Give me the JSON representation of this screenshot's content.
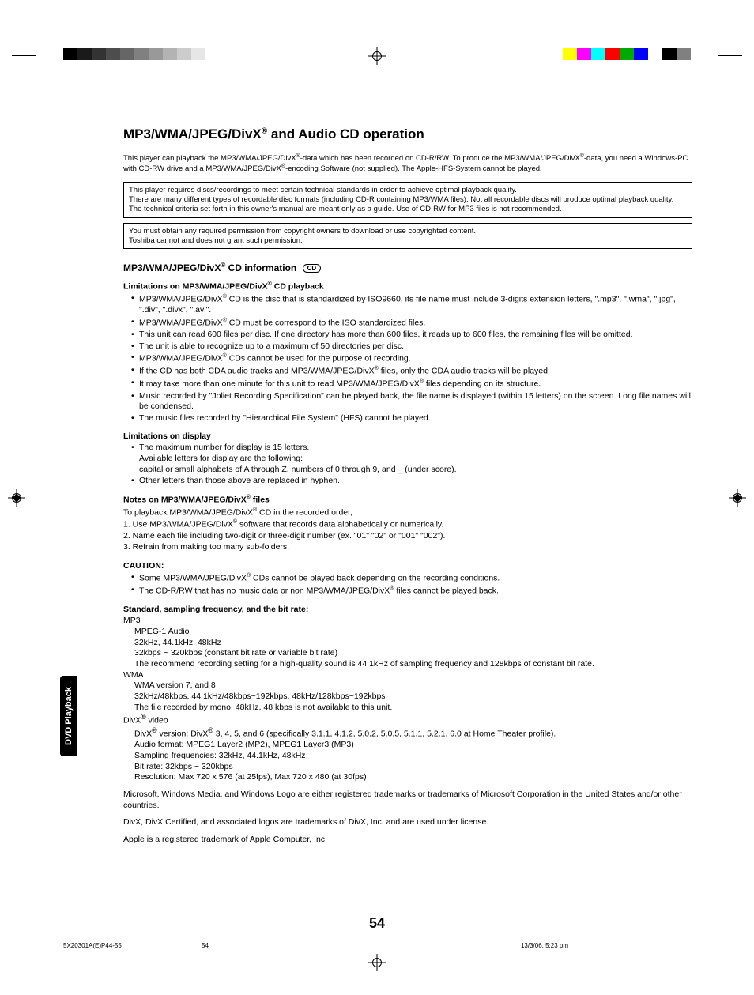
{
  "pageTitle": "MP3/WMA/JPEG/DivX® and Audio CD operation",
  "intro": "This player can playback the MP3/WMA/JPEG/DivX®-data which has been recorded on CD-R/RW. To produce the MP3/WMA/JPEG/DivX®-data, you need a Windows-PC with CD-RW drive and a MP3/WMA/JPEG/DivX®-encoding Software (not supplied). The Apple-HFS-System cannot be played.",
  "box1": "This player requires discs/recordings to meet certain technical standards in order to achieve optimal playback quality.\nThere are many different types of recordable disc formats (including CD-R containing MP3/WMA files). Not all recordable discs will produce optimal playback quality. The technical criteria set forth in this owner's manual are meant only as a guide. Use of CD-RW for MP3 files is not recommended.",
  "box2": "You must obtain any required permission from copyright owners to download or use copyrighted content.\nToshiba cannot and does not grant such permission.",
  "sectionHeading": "MP3/WMA/JPEG/DivX® CD information",
  "discIcon": "CD",
  "sub1": "Limitations on MP3/WMA/JPEG/DivX® CD playback",
  "bullets1": [
    "MP3/WMA/JPEG/DivX® CD is the disc that is standardized by ISO9660, its file name must include 3-digits extension letters, \".mp3\", \".wma\", \".jpg\", \".div\", \".divx\", \".avi\".",
    "MP3/WMA/JPEG/DivX® CD must be correspond to the ISO standardized files.",
    "This unit can read 600 files per disc. If one directory has more than 600 files, it reads up to 600 files, the remaining files will be omitted.",
    "The unit is able to recognize up to a maximum of 50 directories per disc.",
    "MP3/WMA/JPEG/DivX® CDs cannot be used for the purpose of recording.",
    "If the CD has both CDA audio tracks and MP3/WMA/JPEG/DivX® files, only the CDA audio tracks will be played.",
    "It may take more than one minute for this unit to read MP3/WMA/JPEG/DivX® files depending on its structure.",
    "Music recorded by \"Joliet Recording Specification\" can be played back, the file name is displayed (within 15 letters) on the screen. Long file names will be condensed.",
    "The music files recorded by \"Hierarchical File System\" (HFS) cannot be played."
  ],
  "sub2": "Limitations on display",
  "bullets2": [
    "The maximum number for display is 15 letters.\nAvailable letters for display are the following:\ncapital or small alphabets of A through Z, numbers of 0 through 9, and _ (under score).",
    "Other letters than those above are replaced in hyphen."
  ],
  "sub3": "Notes on MP3/WMA/JPEG/DivX® files",
  "noteIntro": "To playback MP3/WMA/JPEG/DivX® CD in the recorded order,",
  "numlist": [
    "1. Use MP3/WMA/JPEG/DivX® software that records data alphabetically or numerically.",
    "2. Name each file including two-digit or three-digit number (ex. \"01\" \"02\" or \"001\" \"002\").",
    "3. Refrain from making too many sub-folders."
  ],
  "sub4": "CAUTION:",
  "bullets4": [
    "Some MP3/WMA/JPEG/DivX® CDs cannot be played back depending on the recording conditions.",
    "The CD-R/RW that has no music data or non MP3/WMA/JPEG/DivX® files cannot be played back."
  ],
  "sub5": "Standard, sampling frequency, and the bit rate:",
  "specMP3label": "MP3",
  "specMP3": [
    "MPEG-1 Audio",
    "32kHz, 44.1kHz, 48kHz",
    "32kbps ~ 320kbps (constant bit rate or variable bit rate)",
    "The recommend recording setting for a high-quality sound is 44.1kHz of sampling frequency and 128kbps of constant bit rate."
  ],
  "specWMAlabel": "WMA",
  "specWMA": [
    "WMA version 7, and 8",
    "32kHz/48kbps, 44.1kHz/48kbps~192kbps, 48kHz/128kbps~192kbps",
    "The file recorded by mono, 48kHz, 48 kbps is not available to this unit."
  ],
  "specDivXlabel": "DivX® video",
  "specDivX": [
    "DivX® version: DivX® 3, 4, 5, and 6 (specifically 3.1.1, 4.1.2, 5.0.2, 5.0.5, 5.1.1, 5.2.1, 6.0 at Home Theater profile).",
    "Audio format: MPEG1 Layer2 (MP2), MPEG1 Layer3 (MP3)",
    "Sampling frequencies: 32kHz, 44.1kHz, 48kHz",
    "Bit rate: 32kbps ~ 320kbps",
    "Resolution: Max 720 x 576 (at 25fps), Max 720 x 480 (at 30fps)"
  ],
  "trademark1": "Microsoft, Windows Media, and Windows Logo are either registered trademarks or trademarks of Microsoft Corporation in the United States and/or other countries.",
  "trademark2": "DivX, DivX Certified, and associated logos are trademarks of DivX, Inc. and are used under license.",
  "trademark3": "Apple is a registered trademark of Apple Computer, Inc.",
  "pageNumber": "54",
  "sideTab": "DVD Playback",
  "footerLeft": "5X20301A(E)P44-55",
  "footerMid": "54",
  "footerRight": "13/3/06, 5:23 pm",
  "grayBar": [
    "#000000",
    "#1a1a1a",
    "#333333",
    "#4d4d4d",
    "#666666",
    "#808080",
    "#999999",
    "#b3b3b3",
    "#cccccc",
    "#e6e6e6",
    "#ffffff"
  ],
  "cmykBar": [
    "#ffff00",
    "#ff00ff",
    "#00ffff",
    "#ff0000",
    "#00aa00",
    "#0000ff",
    "#ffffff",
    "#000000",
    "#808080"
  ]
}
